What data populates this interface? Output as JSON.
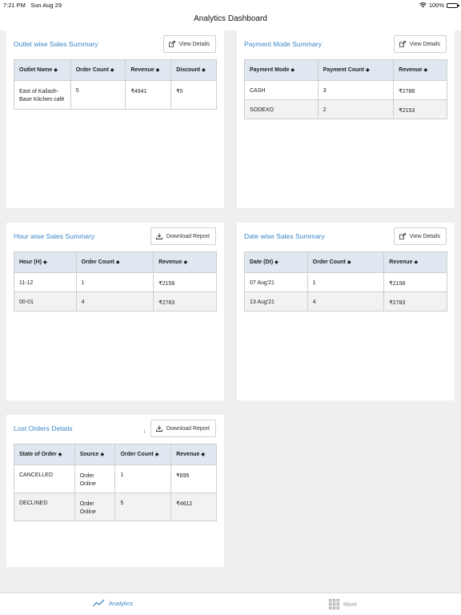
{
  "status": {
    "time": "7:21 PM",
    "date": "Sun Aug 29",
    "battery": "100%",
    "battery_level": 1.0
  },
  "nav": {
    "title": "Analytics Dashboard"
  },
  "outlet": {
    "title": "Outlet wise Sales Summary",
    "button": "View Details",
    "headers": [
      "Outlet Name",
      "Order Count",
      "Revenue",
      "Discount"
    ],
    "rows": [
      [
        "East of Kailash- Base Kitchen café",
        "5",
        "₹4941",
        "₹0"
      ]
    ]
  },
  "payment": {
    "title": "Payment Mode Summary",
    "button": "View Details",
    "headers": [
      "Payment Mode",
      "Payment Count",
      "Revenue"
    ],
    "rows": [
      [
        "CASH",
        "3",
        "₹2788"
      ],
      [
        "SODEXO",
        "2",
        "₹2153"
      ]
    ]
  },
  "hour": {
    "title": "Hour wise Sales Summary",
    "button": "Download Report",
    "headers": [
      "Hour (H)",
      "Order Count",
      "Revenue"
    ],
    "rows": [
      [
        "11-12",
        "1",
        "₹2158"
      ],
      [
        "00-01",
        "4",
        "₹2783"
      ]
    ]
  },
  "date": {
    "title": "Date wise Sales Summary",
    "button": "View Details",
    "headers": [
      "Date (Dt)",
      "Order Count",
      "Revenue"
    ],
    "rows": [
      [
        "07 Aug'21",
        "1",
        "₹2158"
      ],
      [
        "13 Aug'21",
        "4",
        "₹2783"
      ]
    ]
  },
  "lost": {
    "title": "Lost Orders Details",
    "info": "i",
    "button": "Download Report",
    "headers": [
      "State of Order",
      "Source",
      "Order Count",
      "Revenue"
    ],
    "rows": [
      [
        "CANCELLED",
        "Order Online",
        "1",
        "₹895"
      ],
      [
        "DECLINED",
        "Order Online",
        "5",
        "₹4612"
      ]
    ]
  },
  "tabs": {
    "analytics": "Analytics",
    "more": "More"
  },
  "colors": {
    "accent": "#3a86c8",
    "header_bg": "#dfe7f0",
    "muted": "#9a9a9a"
  },
  "icons": {
    "sort": "sort-icon",
    "external": "external-link-icon",
    "download": "download-icon",
    "analytics": "analytics-icon",
    "more": "grid-icon"
  }
}
